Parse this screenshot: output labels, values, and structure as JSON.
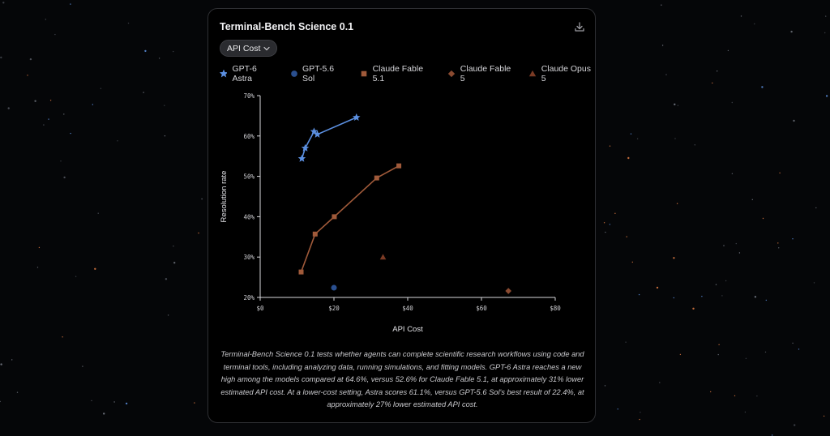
{
  "card": {
    "title": "Terminal-Bench Science 0.1",
    "dropdown_label": "API Cost"
  },
  "legend": [
    {
      "name": "GPT-6 Astra",
      "marker": "star",
      "color": "#5b8fe0"
    },
    {
      "name": "GPT-5.6 Sol",
      "marker": "circle",
      "color": "#2a4f8f"
    },
    {
      "name": "Claude Fable 5.1",
      "marker": "square",
      "color": "#a05a3a"
    },
    {
      "name": "Claude Fable 5",
      "marker": "diamond",
      "color": "#8a4a30"
    },
    {
      "name": "Claude Opus 5",
      "marker": "triangle",
      "color": "#7a3a24"
    }
  ],
  "icons": {
    "download": "download-icon",
    "dropdown": "chevron-down-icon"
  },
  "chart_data": {
    "type": "scatter",
    "xlabel": "API Cost",
    "ylabel": "Resolution rate",
    "xlim": [
      0,
      80
    ],
    "ylim": [
      20,
      70
    ],
    "xticks": [
      0,
      20,
      40,
      60,
      80
    ],
    "xtick_labels": [
      "$0",
      "$20",
      "$40",
      "$60",
      "$80"
    ],
    "yticks": [
      20,
      30,
      40,
      50,
      60,
      70
    ],
    "ytick_labels": [
      "20%",
      "30%",
      "40%",
      "50%",
      "60%",
      "70%"
    ],
    "grid": false,
    "legend_position": "top",
    "series": [
      {
        "name": "GPT-6 Astra",
        "marker": "star",
        "color": "#5b8fe0",
        "connected": true,
        "points": [
          [
            11.3,
            54.4
          ],
          [
            12.2,
            57.0
          ],
          [
            14.6,
            61.1
          ],
          [
            15.5,
            60.4
          ],
          [
            26.1,
            64.6
          ]
        ]
      },
      {
        "name": "GPT-5.6 Sol",
        "marker": "circle",
        "color": "#2a4f8f",
        "connected": false,
        "points": [
          [
            20.0,
            22.4
          ]
        ]
      },
      {
        "name": "Claude Fable 5.1",
        "marker": "square",
        "color": "#a05a3a",
        "connected": true,
        "points": [
          [
            11.1,
            26.3
          ],
          [
            14.9,
            35.7
          ],
          [
            20.1,
            40.0
          ],
          [
            31.6,
            49.6
          ],
          [
            37.6,
            52.6
          ]
        ]
      },
      {
        "name": "Claude Fable 5",
        "marker": "diamond",
        "color": "#8a4a30",
        "connected": false,
        "points": [
          [
            67.3,
            21.6
          ]
        ]
      },
      {
        "name": "Claude Opus 5",
        "marker": "triangle",
        "color": "#7a3a24",
        "connected": false,
        "points": [
          [
            33.3,
            30.0
          ]
        ]
      }
    ]
  },
  "caption": "Terminal-Bench Science 0.1 tests whether agents can complete scientific research workflows using code and terminal tools, including analyzing data, running simulations, and fitting models. GPT-6 Astra reaches a new high among the models compared at 64.6%, versus 52.6% for Claude Fable 5.1, at approximately 31% lower estimated API cost. At a lower-cost setting, Astra scores 61.1%, versus GPT-5.6 Sol's best result of 22.4%, at approximately 27% lower estimated API cost."
}
